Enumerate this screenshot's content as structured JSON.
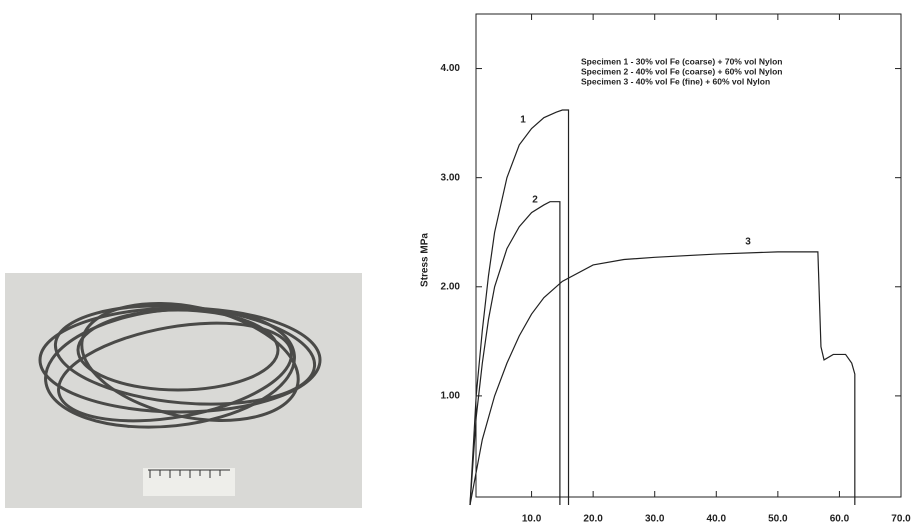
{
  "chart_data": {
    "type": "line",
    "ylabel": "Stress MPa",
    "xlim": [
      0,
      70
    ],
    "ylim": [
      0,
      4.5
    ],
    "xticks": [
      {
        "value": 10,
        "label": "10.0"
      },
      {
        "value": 20,
        "label": "20.0"
      },
      {
        "value": 30,
        "label": "30.0"
      },
      {
        "value": 40,
        "label": "40.0"
      },
      {
        "value": 50,
        "label": "50.0"
      },
      {
        "value": 60,
        "label": "60.0"
      },
      {
        "value": 70,
        "label": "70.0"
      }
    ],
    "yticks": [
      {
        "value": 1,
        "label": "1.00"
      },
      {
        "value": 2,
        "label": "2.00"
      },
      {
        "value": 3,
        "label": "3.00"
      },
      {
        "value": 4,
        "label": "4.00"
      }
    ],
    "color": "#222222",
    "series": [
      {
        "name": "Specimen 1 - 30% vol Fe (coarse) + 70% vol Nylon",
        "label": "1",
        "x": [
          0,
          1,
          2,
          3,
          4,
          6,
          8,
          10,
          12,
          14,
          15,
          16,
          16
        ],
        "values": [
          0,
          1.0,
          1.6,
          2.1,
          2.5,
          3.0,
          3.3,
          3.45,
          3.55,
          3.6,
          3.62,
          3.62,
          0
        ]
      },
      {
        "name": "Specimen 2 - 40% vol Fe (coarse) + 60% vol Nylon",
        "label": "2",
        "x": [
          0,
          1,
          2,
          3,
          4,
          6,
          8,
          10,
          12,
          13,
          14,
          14.6,
          14.6
        ],
        "values": [
          0,
          0.8,
          1.3,
          1.7,
          2.0,
          2.35,
          2.55,
          2.68,
          2.75,
          2.78,
          2.78,
          2.78,
          0
        ]
      },
      {
        "name": "Specimen 3 - 40% vol Fe (fine) + 60% vol Nylon",
        "label": "3",
        "x": [
          0,
          2,
          4,
          6,
          8,
          10,
          12,
          15,
          20,
          25,
          30,
          40,
          50,
          56.5,
          57,
          57.5,
          59,
          61,
          62,
          62.5,
          62.5
        ],
        "values": [
          0,
          0.6,
          1.0,
          1.3,
          1.55,
          1.75,
          1.9,
          2.05,
          2.2,
          2.25,
          2.27,
          2.3,
          2.32,
          2.32,
          1.45,
          1.33,
          1.38,
          1.38,
          1.3,
          1.2,
          0
        ]
      }
    ]
  }
}
